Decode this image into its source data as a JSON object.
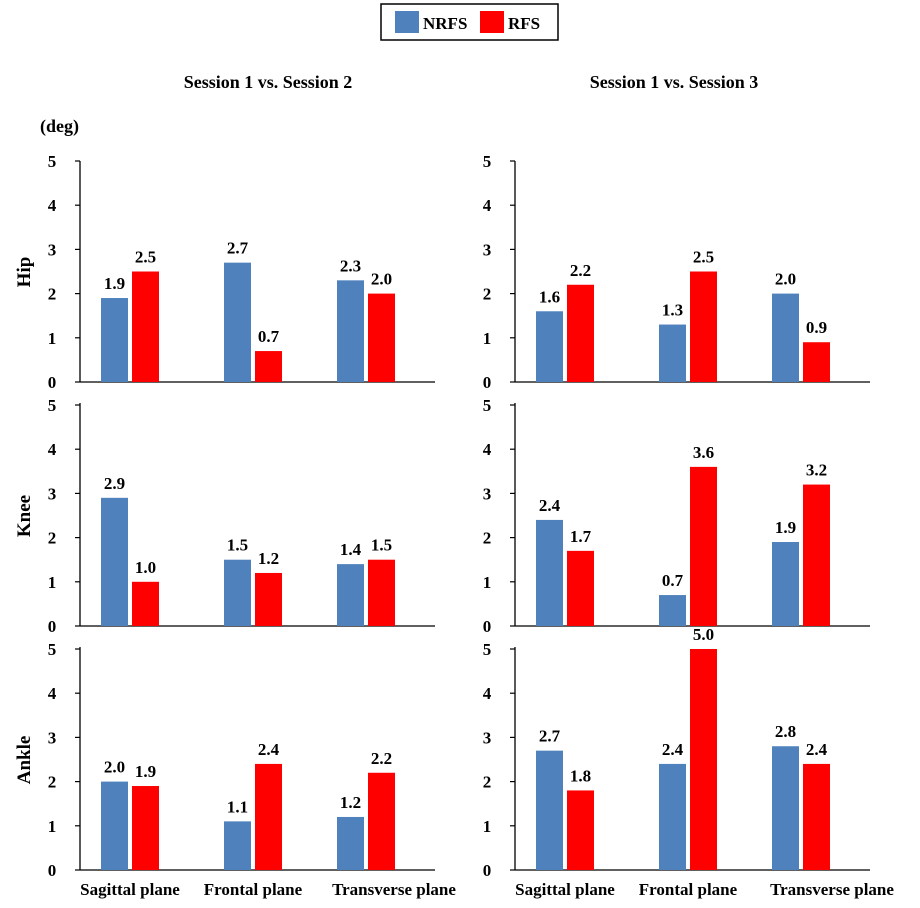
{
  "chart_data": {
    "type": "bar",
    "unit_label": "(deg)",
    "legend": [
      {
        "name": "NRFS",
        "color": "#4f81bd"
      },
      {
        "name": "RFS",
        "color": "#ff0000"
      }
    ],
    "columns": [
      "Session 1 vs. Session 2",
      "Session 1 vs. Session 3"
    ],
    "rows": [
      "Hip",
      "Knee",
      "Ankle"
    ],
    "categories": [
      "Sagittal plane",
      "Frontal plane",
      "Transverse plane"
    ],
    "ylim": [
      0,
      5
    ],
    "yticks": [
      0,
      1,
      2,
      3,
      4,
      5
    ],
    "panels": [
      {
        "row": "Hip",
        "column": "Session 1 vs. Session 2",
        "series": [
          {
            "name": "NRFS",
            "values": [
              1.9,
              2.7,
              2.3
            ]
          },
          {
            "name": "RFS",
            "values": [
              2.5,
              0.7,
              2.0
            ]
          }
        ]
      },
      {
        "row": "Hip",
        "column": "Session 1 vs. Session 3",
        "series": [
          {
            "name": "NRFS",
            "values": [
              1.6,
              1.3,
              2.0
            ]
          },
          {
            "name": "RFS",
            "values": [
              2.2,
              2.5,
              0.9
            ]
          }
        ]
      },
      {
        "row": "Knee",
        "column": "Session 1 vs. Session 2",
        "series": [
          {
            "name": "NRFS",
            "values": [
              2.9,
              1.5,
              1.4
            ]
          },
          {
            "name": "RFS",
            "values": [
              1.0,
              1.2,
              1.5
            ]
          }
        ]
      },
      {
        "row": "Knee",
        "column": "Session 1 vs. Session 3",
        "series": [
          {
            "name": "NRFS",
            "values": [
              2.4,
              0.7,
              1.9
            ]
          },
          {
            "name": "RFS",
            "values": [
              1.7,
              3.6,
              3.2
            ]
          }
        ]
      },
      {
        "row": "Ankle",
        "column": "Session 1 vs. Session 2",
        "series": [
          {
            "name": "NRFS",
            "values": [
              2.0,
              1.1,
              1.2
            ]
          },
          {
            "name": "RFS",
            "values": [
              1.9,
              2.4,
              2.2
            ]
          }
        ]
      },
      {
        "row": "Ankle",
        "column": "Session 1 vs. Session 3",
        "series": [
          {
            "name": "NRFS",
            "values": [
              2.7,
              2.4,
              2.8
            ]
          },
          {
            "name": "RFS",
            "values": [
              1.8,
              5.0,
              2.4
            ]
          }
        ]
      }
    ]
  }
}
